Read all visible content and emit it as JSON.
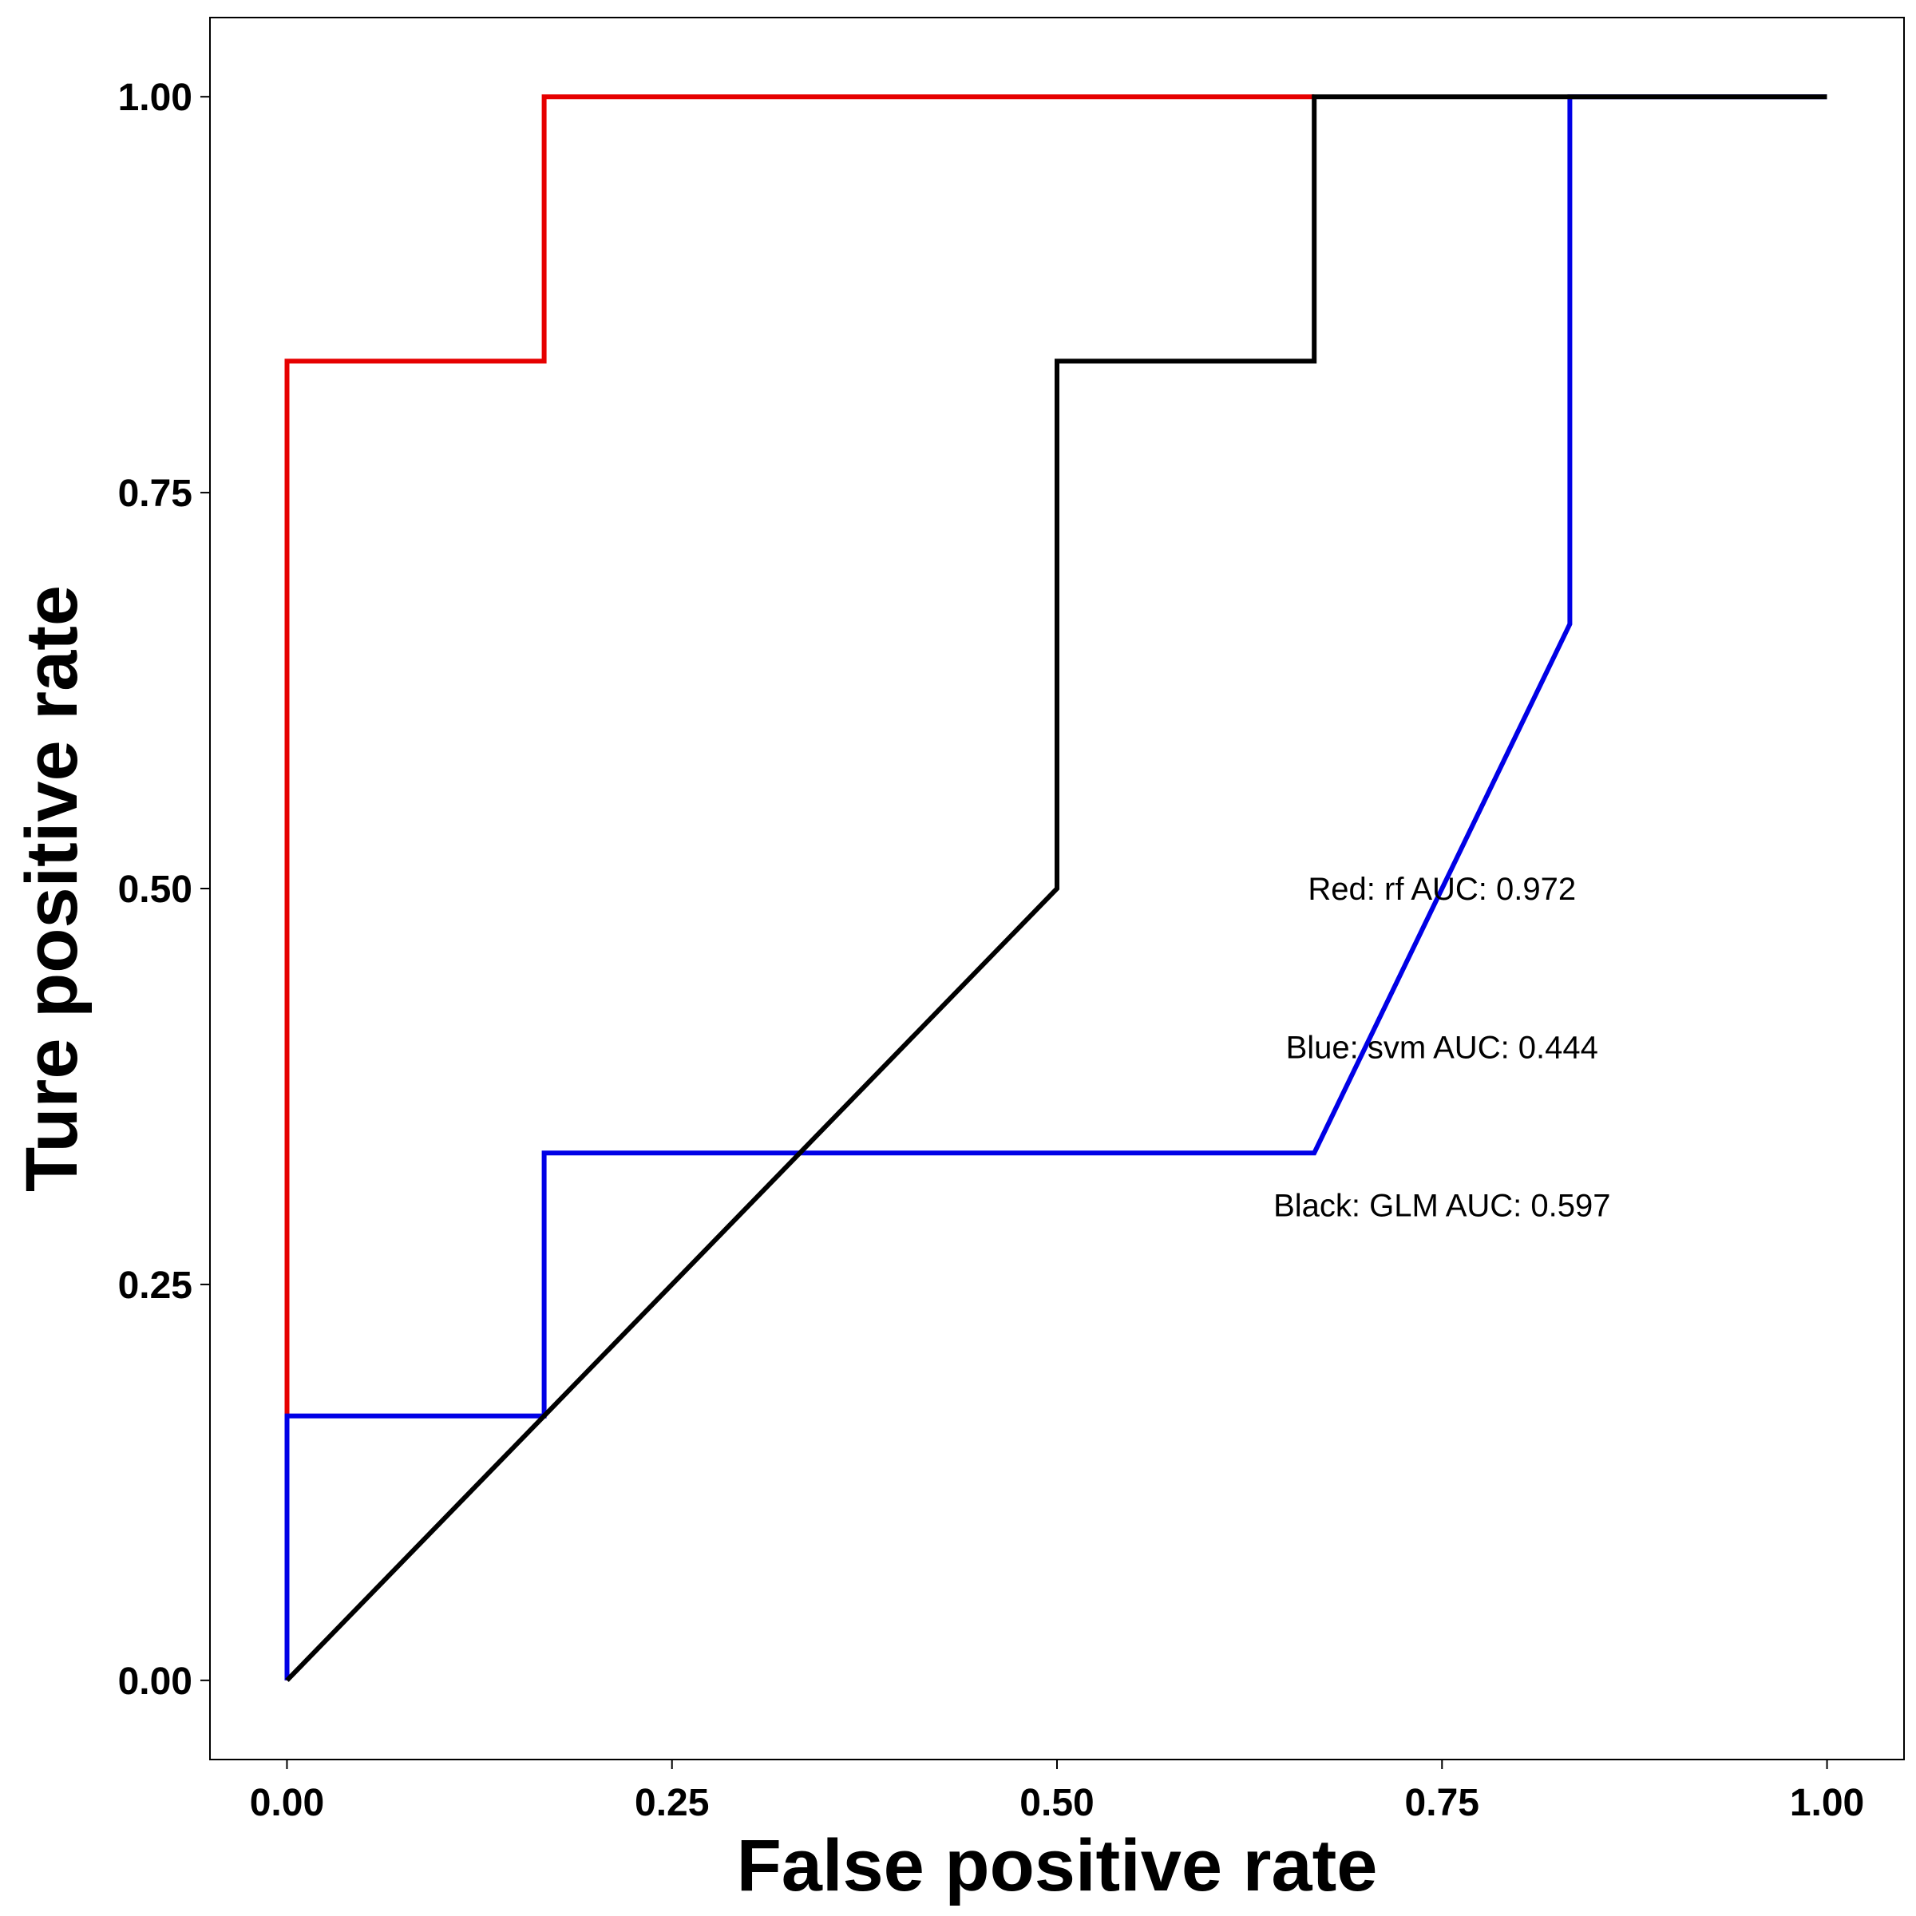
{
  "chart_data": {
    "type": "line",
    "title": "",
    "xlabel": "False positive rate",
    "ylabel": "Ture positive rate",
    "xlim": [
      -0.05,
      1.05
    ],
    "ylim": [
      -0.05,
      1.05
    ],
    "x_ticks": [
      {
        "value": 0,
        "label": "0.00"
      },
      {
        "value": 0.25,
        "label": "0.25"
      },
      {
        "value": 0.5,
        "label": "0.50"
      },
      {
        "value": 0.75,
        "label": "0.75"
      },
      {
        "value": 1,
        "label": "1.00"
      }
    ],
    "y_ticks": [
      {
        "value": 0,
        "label": "0.00"
      },
      {
        "value": 0.25,
        "label": "0.25"
      },
      {
        "value": 0.5,
        "label": "0.50"
      },
      {
        "value": 0.75,
        "label": "0.75"
      },
      {
        "value": 1,
        "label": "1.00"
      }
    ],
    "grid": false,
    "legend": "none",
    "series": [
      {
        "color": "#e60000",
        "points": [
          [
            0,
            0
          ],
          [
            0,
            0.833
          ],
          [
            0.167,
            0.833
          ],
          [
            0.167,
            1.0
          ],
          [
            0.667,
            1.0
          ]
        ]
      },
      {
        "color": "#0000e6",
        "points": [
          [
            0,
            0
          ],
          [
            0,
            0.167
          ],
          [
            0.167,
            0.167
          ],
          [
            0.167,
            0.333
          ],
          [
            0.667,
            0.333
          ],
          [
            0.833,
            0.667
          ],
          [
            0.833,
            1.0
          ],
          [
            1.0,
            1.0
          ]
        ]
      },
      {
        "color": "#000000",
        "points": [
          [
            0,
            0
          ],
          [
            0.5,
            0.5
          ],
          [
            0.5,
            0.833
          ],
          [
            0.667,
            0.833
          ],
          [
            0.667,
            1.0
          ],
          [
            1.0,
            1.0
          ]
        ]
      }
    ],
    "annotations": [
      {
        "text": "Red: rf AUC: 0.972",
        "x": 0.75,
        "y": 0.5
      },
      {
        "text": "Blue: svm AUC: 0.444",
        "x": 0.75,
        "y": 0.4
      },
      {
        "text": "Black: GLM AUC: 0.597",
        "x": 0.75,
        "y": 0.3
      }
    ]
  }
}
